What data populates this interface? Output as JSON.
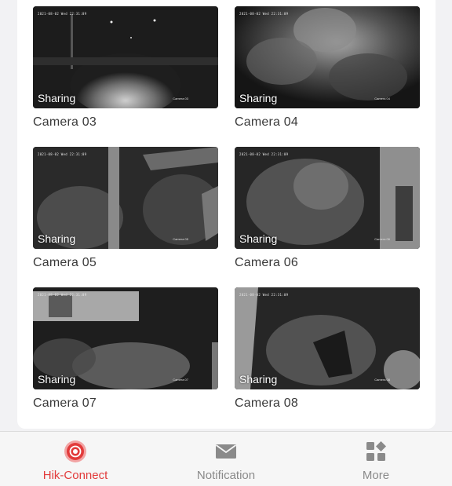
{
  "cameras": [
    {
      "name": "Camera 03",
      "badge": "Sharing",
      "osd_top": "2021-08-02 Wed 22:31:09",
      "osd_bottom": "Camera 03"
    },
    {
      "name": "Camera 04",
      "badge": "Sharing",
      "osd_top": "2021-08-02 Wed 22:31:09",
      "osd_bottom": "Camera 04"
    },
    {
      "name": "Camera 05",
      "badge": "Sharing",
      "osd_top": "2021-08-02 Wed 22:31:09",
      "osd_bottom": "Camera 05"
    },
    {
      "name": "Camera 06",
      "badge": "Sharing",
      "osd_top": "2021-08-02 Wed 22:31:09",
      "osd_bottom": "Camera 06"
    },
    {
      "name": "Camera 07",
      "badge": "Sharing",
      "osd_top": "2021-08-02 Wed 22:31:09",
      "osd_bottom": "Camera 07"
    },
    {
      "name": "Camera 08",
      "badge": "Sharing",
      "osd_top": "2021-08-02 Wed 22:31:09",
      "osd_bottom": "Camera 08"
    }
  ],
  "nav": {
    "items": [
      {
        "label": "Hik-Connect",
        "icon": "hik-connect-icon",
        "active": true
      },
      {
        "label": "Notification",
        "icon": "envelope-icon",
        "active": false
      },
      {
        "label": "More",
        "icon": "grid-icon",
        "active": false
      }
    ]
  },
  "colors": {
    "accent": "#e23b3b",
    "inactive": "#8a8a8a",
    "background": "#f2f2f4"
  }
}
